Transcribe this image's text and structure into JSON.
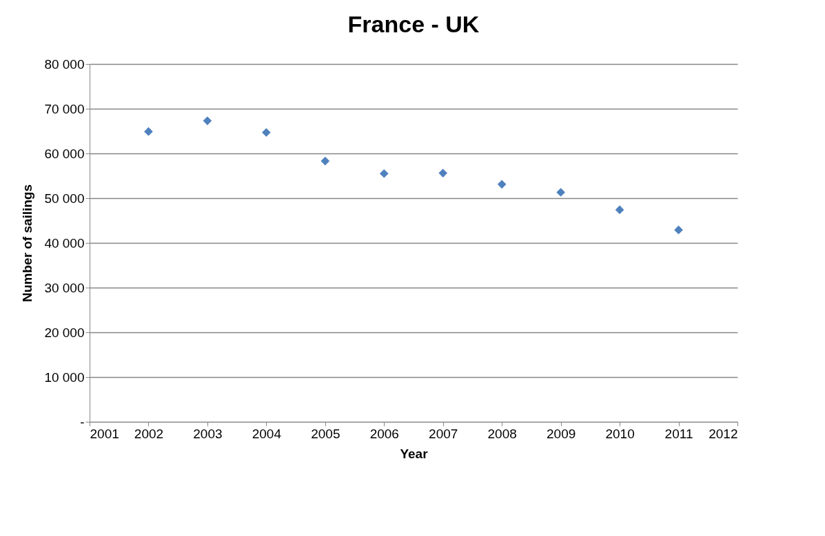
{
  "chart_data": {
    "type": "scatter",
    "title": "France - UK",
    "xlabel": "Year",
    "ylabel": "Number of sailings",
    "x": [
      2002,
      2003,
      2004,
      2005,
      2006,
      2007,
      2008,
      2009,
      2010,
      2011
    ],
    "series": [
      {
        "color": "#4f81bd",
        "values": [
          64900,
          67300,
          64700,
          58300,
          55500,
          55600,
          53100,
          51300,
          47400,
          42900
        ]
      }
    ],
    "xlim": [
      2001,
      2012
    ],
    "xticks": [
      2001,
      2002,
      2003,
      2004,
      2005,
      2006,
      2007,
      2008,
      2009,
      2010,
      2011,
      2012
    ],
    "ylim": [
      0,
      80000
    ],
    "yticks": [
      {
        "value": 0,
        "label": "-"
      },
      {
        "value": 10000,
        "label": "10 000"
      },
      {
        "value": 20000,
        "label": "20 000"
      },
      {
        "value": 30000,
        "label": "30 000"
      },
      {
        "value": 40000,
        "label": "40 000"
      },
      {
        "value": 50000,
        "label": "50 000"
      },
      {
        "value": 60000,
        "label": "60 000"
      },
      {
        "value": 70000,
        "label": "70 000"
      },
      {
        "value": 80000,
        "label": "80 000"
      }
    ],
    "grid": "y",
    "marker": "diamond"
  }
}
